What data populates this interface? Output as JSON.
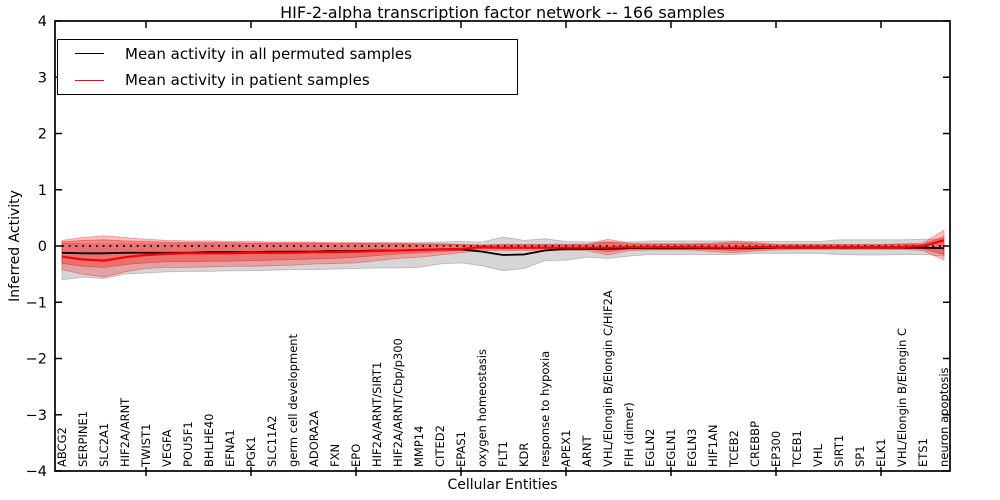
{
  "figure": {
    "title": "HIF-2-alpha transcription factor network -- 166 samples",
    "xlabel": "Cellular Entities",
    "ylabel": "Inferred Activity"
  },
  "legend": {
    "entries": [
      {
        "label": "Mean activity in all permuted samples",
        "color": "#000000"
      },
      {
        "label": "Mean activity in patient samples",
        "color": "#ff0000"
      }
    ],
    "position": "upper left"
  },
  "chart_data": {
    "type": "line",
    "title": "HIF-2-alpha transcription factor network -- 166 samples",
    "xlabel": "Cellular Entities",
    "ylabel": "Inferred Activity",
    "ylim": [
      -4,
      4
    ],
    "grid": false,
    "legend_position": "upper left",
    "y_tick_labels": [
      "−4",
      "−3",
      "−2",
      "−1",
      "0",
      "1",
      "2",
      "3",
      "4"
    ],
    "y_tick_values": [
      -4,
      -3,
      -2,
      -1,
      0,
      1,
      2,
      3,
      4
    ],
    "x_major_tick_positions": [
      5,
      10,
      15,
      20,
      25,
      30,
      35,
      40
    ],
    "categories": [
      "ABCG2",
      "SERPINE1",
      "SLC2A1",
      "HIF2A/ARNT",
      "TWIST1",
      "VEGFA",
      "POU5F1",
      "BHLHE40",
      "EFNA1",
      "PGK1",
      "SLC11A2",
      "germ cell development",
      "ADORA2A",
      "FXN",
      "EPO",
      "HIF2A/ARNT/SIRT1",
      "HIF2A/ARNT/Cbp/p300",
      "MMP14",
      "CITED2",
      "EPAS1",
      "oxygen homeostasis",
      "FLT1",
      "KDR",
      "response to hypoxia",
      "APEX1",
      "ARNT",
      "VHL/Elongin B/Elongin C/HIF2A",
      "FIH (dimer)",
      "EGLN2",
      "EGLN1",
      "EGLN3",
      "HIF1AN",
      "TCEB2",
      "CREBBP",
      "EP300",
      "TCEB1",
      "VHL",
      "SIRT1",
      "SP1",
      "ELK1",
      "VHL/Elongin B/Elongin C",
      "ETS1",
      "neuron apoptosis"
    ],
    "zero_line": {
      "value": 0,
      "style": "dotted",
      "color": "#000000"
    },
    "series": [
      {
        "name": "Mean activity in all permuted samples",
        "color": "#000000",
        "style": "solid",
        "values": [
          -0.12,
          -0.13,
          -0.13,
          -0.12,
          -0.12,
          -0.12,
          -0.12,
          -0.11,
          -0.11,
          -0.11,
          -0.1,
          -0.1,
          -0.1,
          -0.09,
          -0.09,
          -0.08,
          -0.08,
          -0.07,
          -0.06,
          -0.06,
          -0.1,
          -0.16,
          -0.15,
          -0.08,
          -0.05,
          -0.05,
          -0.05,
          -0.04,
          -0.04,
          -0.04,
          -0.04,
          -0.04,
          -0.04,
          -0.04,
          -0.03,
          -0.03,
          -0.03,
          -0.03,
          -0.03,
          -0.03,
          -0.03,
          -0.03,
          -0.04
        ]
      },
      {
        "name": "Mean activity in patient samples",
        "color": "#ff0000",
        "style": "solid",
        "values": [
          -0.19,
          -0.24,
          -0.26,
          -0.2,
          -0.16,
          -0.14,
          -0.13,
          -0.13,
          -0.13,
          -0.12,
          -0.12,
          -0.12,
          -0.11,
          -0.11,
          -0.1,
          -0.09,
          -0.08,
          -0.07,
          -0.06,
          -0.05,
          -0.02,
          -0.03,
          -0.03,
          -0.03,
          -0.03,
          -0.03,
          -0.03,
          -0.02,
          -0.02,
          -0.02,
          -0.02,
          -0.03,
          -0.03,
          -0.02,
          -0.02,
          -0.02,
          -0.02,
          -0.02,
          -0.02,
          -0.02,
          -0.02,
          0.0,
          0.1
        ]
      }
    ],
    "bands": [
      {
        "name": "permuted-sample-range",
        "color": "#808080",
        "opacity": 0.32,
        "upper": [
          0.05,
          0.04,
          0.04,
          0.04,
          0.04,
          0.04,
          0.04,
          0.04,
          0.04,
          0.04,
          0.04,
          0.04,
          0.04,
          0.04,
          0.05,
          0.06,
          0.06,
          0.06,
          0.07,
          0.08,
          0.07,
          0.16,
          0.1,
          0.13,
          0.08,
          0.07,
          0.07,
          0.07,
          0.09,
          0.09,
          0.09,
          0.09,
          0.09,
          0.08,
          0.08,
          0.08,
          0.08,
          0.11,
          0.11,
          0.11,
          0.11,
          0.12,
          0.13
        ],
        "lower": [
          -0.6,
          -0.55,
          -0.58,
          -0.5,
          -0.48,
          -0.46,
          -0.45,
          -0.45,
          -0.44,
          -0.44,
          -0.43,
          -0.42,
          -0.42,
          -0.41,
          -0.4,
          -0.39,
          -0.39,
          -0.38,
          -0.32,
          -0.3,
          -0.35,
          -0.44,
          -0.4,
          -0.26,
          -0.25,
          -0.2,
          -0.22,
          -0.18,
          -0.15,
          -0.15,
          -0.15,
          -0.15,
          -0.15,
          -0.13,
          -0.13,
          -0.13,
          -0.13,
          -0.15,
          -0.16,
          -0.16,
          -0.15,
          -0.15,
          -0.18
        ]
      },
      {
        "name": "patient-sample-range-outer",
        "color": "#ff0000",
        "opacity": 0.24,
        "upper": [
          0.1,
          0.15,
          0.18,
          0.15,
          0.12,
          0.1,
          0.09,
          0.09,
          0.08,
          0.08,
          0.07,
          0.07,
          0.07,
          0.06,
          0.06,
          0.05,
          0.05,
          0.04,
          0.04,
          0.03,
          0.02,
          0.03,
          0.03,
          0.03,
          0.03,
          0.03,
          0.12,
          0.05,
          0.04,
          0.04,
          0.04,
          0.05,
          0.08,
          0.06,
          0.03,
          0.03,
          0.03,
          0.03,
          0.03,
          0.03,
          0.04,
          0.05,
          0.28
        ],
        "lower": [
          -0.42,
          -0.5,
          -0.55,
          -0.46,
          -0.4,
          -0.38,
          -0.38,
          -0.37,
          -0.36,
          -0.36,
          -0.35,
          -0.34,
          -0.32,
          -0.31,
          -0.3,
          -0.26,
          -0.22,
          -0.2,
          -0.16,
          -0.12,
          -0.08,
          -0.08,
          -0.08,
          -0.08,
          -0.08,
          -0.08,
          -0.16,
          -0.08,
          -0.07,
          -0.07,
          -0.07,
          -0.1,
          -0.12,
          -0.09,
          -0.07,
          -0.06,
          -0.06,
          -0.06,
          -0.06,
          -0.06,
          -0.06,
          -0.08,
          -0.25
        ]
      },
      {
        "name": "patient-sample-range-inner",
        "color": "#ff0000",
        "opacity": 0.3,
        "upper": [
          0.07,
          0.1,
          0.11,
          0.09,
          0.08,
          0.07,
          0.06,
          0.06,
          0.06,
          0.05,
          0.05,
          0.05,
          0.05,
          0.04,
          0.04,
          0.04,
          0.03,
          0.03,
          0.03,
          0.02,
          0.01,
          0.02,
          0.02,
          0.02,
          0.02,
          0.02,
          0.07,
          0.03,
          0.03,
          0.03,
          0.03,
          0.03,
          0.05,
          0.04,
          0.02,
          0.02,
          0.02,
          0.02,
          0.02,
          0.02,
          0.03,
          0.03,
          0.17
        ],
        "lower": [
          -0.31,
          -0.36,
          -0.38,
          -0.33,
          -0.3,
          -0.28,
          -0.28,
          -0.27,
          -0.27,
          -0.26,
          -0.25,
          -0.24,
          -0.23,
          -0.22,
          -0.2,
          -0.17,
          -0.14,
          -0.12,
          -0.1,
          -0.08,
          -0.05,
          -0.05,
          -0.05,
          -0.05,
          -0.05,
          -0.05,
          -0.1,
          -0.05,
          -0.05,
          -0.05,
          -0.05,
          -0.06,
          -0.08,
          -0.06,
          -0.04,
          -0.04,
          -0.04,
          -0.04,
          -0.04,
          -0.04,
          -0.04,
          -0.05,
          -0.15
        ]
      }
    ]
  }
}
